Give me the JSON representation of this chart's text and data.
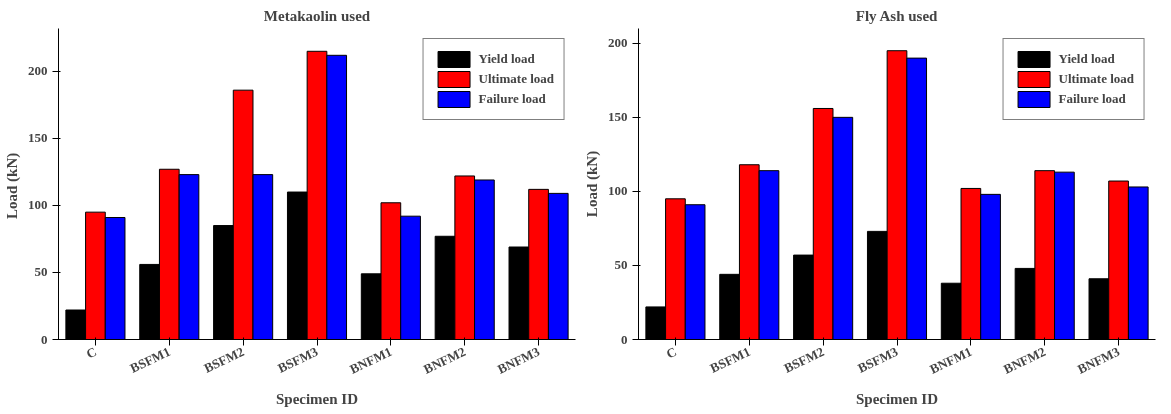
{
  "chart_data": [
    {
      "type": "bar",
      "title": "Metakaolin used",
      "xlabel": "Specimen ID",
      "ylabel": "Load  (kN)",
      "categories": [
        "C",
        "BSFM1",
        "BSFM2",
        "BSFM3",
        "BNFM1",
        "BNFM2",
        "BNFM3"
      ],
      "series": [
        {
          "name": "Yield load",
          "color": "#000000",
          "values": [
            22,
            56,
            85,
            110,
            49,
            77,
            69
          ]
        },
        {
          "name": "Ultimate load",
          "color": "#ff0000",
          "values": [
            95,
            127,
            186,
            215,
            102,
            122,
            112
          ]
        },
        {
          "name": "Failure load",
          "color": "#0000ff",
          "values": [
            91,
            123,
            123,
            212,
            92,
            119,
            109
          ]
        }
      ],
      "ylim": [
        0,
        232
      ],
      "yticks": [
        0,
        50,
        100,
        150,
        200
      ],
      "grid": false,
      "legend": "top right"
    },
    {
      "type": "bar",
      "title": "Fly Ash used",
      "xlabel": "Specimen ID",
      "ylabel": "Load (kN)",
      "categories": [
        "C",
        "BSFM1",
        "BSFM2",
        "BSFM3",
        "BNFM1",
        "BNFM2",
        "BNFM3"
      ],
      "series": [
        {
          "name": "Yield load",
          "color": "#000000",
          "values": [
            22,
            44,
            57,
            73,
            38,
            48,
            41
          ]
        },
        {
          "name": "Ultimate load",
          "color": "#ff0000",
          "values": [
            95,
            118,
            156,
            195,
            102,
            114,
            107
          ]
        },
        {
          "name": "Failure load",
          "color": "#0000ff",
          "values": [
            91,
            114,
            150,
            190,
            98,
            113,
            103
          ]
        }
      ],
      "ylim": [
        0,
        210
      ],
      "yticks": [
        0,
        50,
        100,
        150,
        200
      ],
      "grid": false,
      "legend": "top right"
    }
  ]
}
